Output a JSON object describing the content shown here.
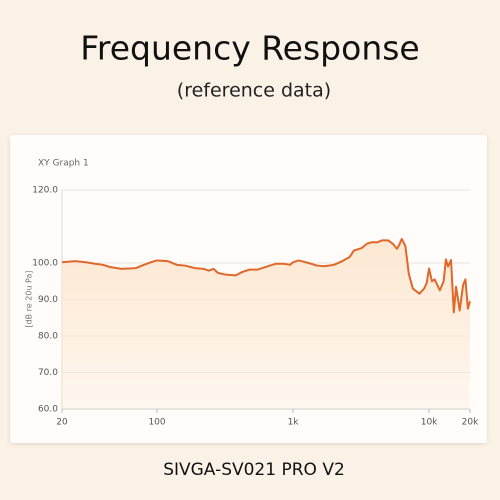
{
  "header": {
    "title": "Frequency Response",
    "subtitle": "(reference data)"
  },
  "footer": {
    "caption": "SIVGA-SV021 PRO V2"
  },
  "chart_data": {
    "type": "line",
    "title": "XY Graph 1",
    "y_label": "[dB re 20u Pa]",
    "x_scale": "log",
    "xlim": [
      20,
      20000
    ],
    "xticks": [
      20,
      100,
      {
        "value": 1000,
        "label": "1k"
      },
      {
        "value": 10000,
        "label": "10k"
      },
      {
        "value": 20000,
        "label": "20k"
      }
    ],
    "ylim": [
      60,
      120
    ],
    "yticks": [
      {
        "value": 120,
        "label": "120.0"
      },
      {
        "value": 100,
        "label": "100.0"
      },
      {
        "value": 90,
        "label": "90.0"
      },
      {
        "value": 80,
        "label": "80.0"
      },
      {
        "value": 70,
        "label": "70.0"
      },
      {
        "value": 60,
        "label": "60.0"
      }
    ],
    "grid": true,
    "color": "#e0682b",
    "fill_color": "#fde8d2",
    "x": [
      20,
      25,
      30,
      35,
      40,
      45,
      55,
      70,
      80,
      90,
      100,
      120,
      140,
      160,
      190,
      220,
      240,
      260,
      280,
      320,
      380,
      420,
      480,
      550,
      650,
      750,
      850,
      950,
      1000,
      1100,
      1300,
      1500,
      1700,
      2000,
      2300,
      2600,
      2800,
      3200,
      3500,
      3800,
      4200,
      4500,
      5000,
      5400,
      5800,
      6000,
      6300,
      6700,
      7100,
      7600,
      8500,
      9200,
      9600,
      10000,
      10500,
      11000,
      12000,
      12800,
      13300,
      13800,
      14500,
      15200,
      15800,
      16800,
      17800,
      18500,
      19300,
      20000
    ],
    "values": [
      100.2,
      100.5,
      100.2,
      99.8,
      99.5,
      98.9,
      98.4,
      98.6,
      99.5,
      100.2,
      100.7,
      100.5,
      99.5,
      99.3,
      98.6,
      98.4,
      97.9,
      98.4,
      97.3,
      96.8,
      96.6,
      97.5,
      98.2,
      98.2,
      99.1,
      99.8,
      99.8,
      99.5,
      100.2,
      100.7,
      100.0,
      99.3,
      99.1,
      99.5,
      100.5,
      101.6,
      103.4,
      104.1,
      105.3,
      105.7,
      105.7,
      106.2,
      106.2,
      105.3,
      103.9,
      104.8,
      106.6,
      104.6,
      97.0,
      93.0,
      91.6,
      93.0,
      94.5,
      98.5,
      95.0,
      95.5,
      92.5,
      95.0,
      101.0,
      99.0,
      100.8,
      86.5,
      93.5,
      87.0,
      94.0,
      95.5,
      87.5,
      89.5
    ]
  }
}
